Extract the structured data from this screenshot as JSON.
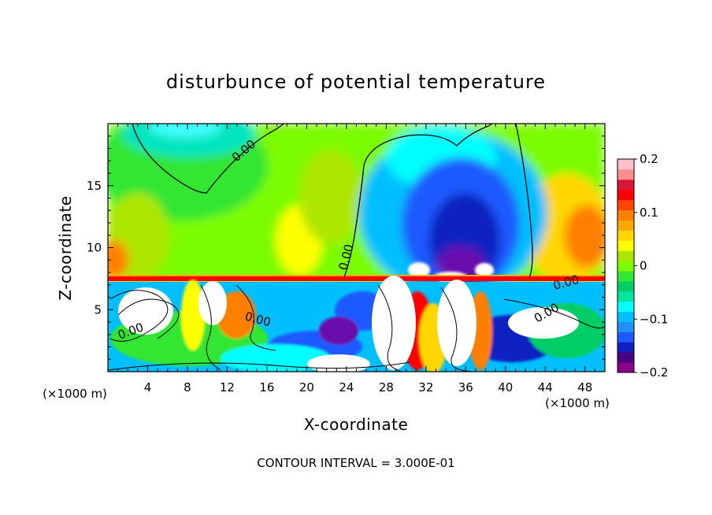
{
  "chart_data": {
    "type": "heatmap",
    "title": "disturbunce of potential temperature",
    "xlabel": "X-coordinate",
    "ylabel": "Z-coordinate",
    "x_unit_left": "(×1000 m)",
    "x_unit_right": "(×1000 m)",
    "xlim": [
      0,
      50
    ],
    "ylim": [
      0,
      20
    ],
    "x_ticks": [
      4,
      8,
      12,
      16,
      20,
      24,
      28,
      32,
      36,
      40,
      44,
      48
    ],
    "x_tick_labels": [
      "4",
      "8",
      "12",
      "16",
      "20",
      "24",
      "28",
      "32",
      "36",
      "40",
      "44",
      "48"
    ],
    "y_ticks": [
      5,
      10,
      15
    ],
    "y_tick_labels": [
      "5",
      "10",
      "15"
    ],
    "contour_label": "0.00",
    "contour_interval_text": "CONTOUR INTERVAL = 3.000E-01",
    "colorbar": {
      "range": [
        -0.2,
        0.2
      ],
      "tick_values": [
        0.2,
        0.1,
        0,
        -0.1,
        -0.2
      ],
      "tick_labels": [
        "0.2",
        "0.1",
        "0",
        "−0.1",
        "−0.2"
      ],
      "colors": [
        "#8b008b",
        "#4b0082",
        "#1020c0",
        "#1c5aff",
        "#1e90ff",
        "#00bfff",
        "#00ffff",
        "#00e5a0",
        "#00cd66",
        "#32e632",
        "#7cfc00",
        "#ade600",
        "#ffff00",
        "#ffd700",
        "#ffa500",
        "#ff7f00",
        "#ff4500",
        "#ff0000",
        "#dc143c",
        "#ff8c8c",
        "#ffc0cb"
      ]
    }
  }
}
